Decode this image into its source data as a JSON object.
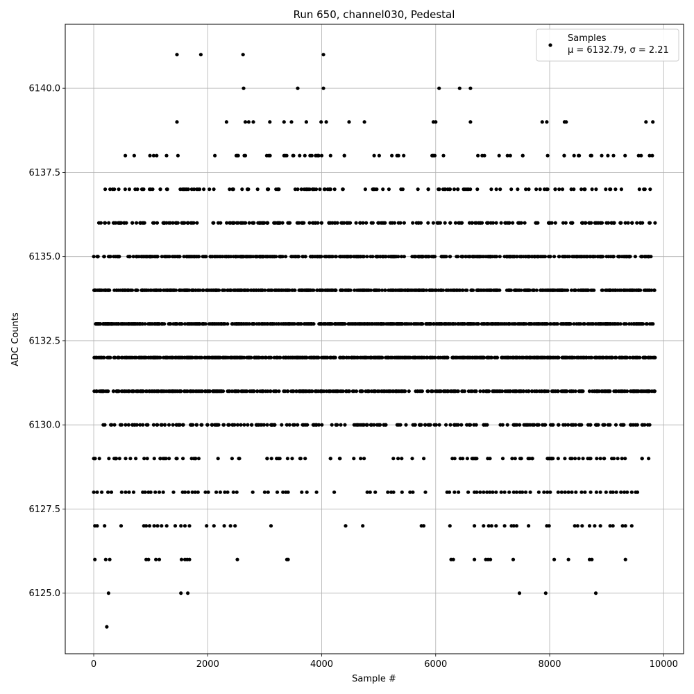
{
  "chart_data": {
    "type": "scatter",
    "title": "Run 650, channel030, Pedestal",
    "xlabel": "Sample #",
    "ylabel": "ADC Counts",
    "xlim": [
      -500,
      10350
    ],
    "ylim": [
      6123.2,
      6141.9
    ],
    "xticks": [
      0,
      2000,
      4000,
      6000,
      8000,
      10000
    ],
    "xtick_labels": [
      "0",
      "2000",
      "4000",
      "6000",
      "8000",
      "10000"
    ],
    "yticks": [
      6125.0,
      6127.5,
      6130.0,
      6132.5,
      6135.0,
      6137.5,
      6140.0
    ],
    "ytick_labels": [
      "6125.0",
      "6127.5",
      "6130.0",
      "6132.5",
      "6135.0",
      "6137.5",
      "6140.0"
    ],
    "grid": true,
    "legend_placement": "top-right",
    "marker_color": "#000000",
    "series": [
      {
        "name": "Samples",
        "stats_label": "μ = 6132.79, σ = 2.21",
        "mean": 6132.79,
        "sigma": 2.21,
        "points": [
          [
            230,
            6124
          ],
          [
            260,
            6125
          ],
          [
            1530,
            6125
          ],
          [
            1650,
            6125
          ],
          [
            7470,
            6125
          ],
          [
            7930,
            6125
          ],
          [
            8810,
            6125
          ],
          [
            20,
            6126
          ],
          [
            210,
            6126
          ],
          [
            280,
            6126
          ],
          [
            920,
            6126
          ],
          [
            960,
            6126
          ],
          [
            1090,
            6126
          ],
          [
            1150,
            6126
          ],
          [
            1540,
            6126
          ],
          [
            1600,
            6126
          ],
          [
            1640,
            6126
          ],
          [
            1680,
            6126
          ],
          [
            2520,
            6126
          ],
          [
            3390,
            6126
          ],
          [
            3410,
            6126
          ],
          [
            6270,
            6126
          ],
          [
            6310,
            6126
          ],
          [
            6680,
            6126
          ],
          [
            6880,
            6126
          ],
          [
            6920,
            6126
          ],
          [
            6960,
            6126
          ],
          [
            7360,
            6126
          ],
          [
            8080,
            6126
          ],
          [
            8330,
            6126
          ],
          [
            8700,
            6126
          ],
          [
            8740,
            6126
          ],
          [
            9330,
            6126
          ],
          [
            20,
            6127
          ],
          [
            60,
            6127
          ],
          [
            190,
            6127
          ],
          [
            480,
            6127
          ],
          [
            880,
            6127
          ],
          [
            920,
            6127
          ],
          [
            980,
            6127
          ],
          [
            1060,
            6127
          ],
          [
            1120,
            6127
          ],
          [
            1190,
            6127
          ],
          [
            1280,
            6127
          ],
          [
            1430,
            6127
          ],
          [
            1530,
            6127
          ],
          [
            1600,
            6127
          ],
          [
            1680,
            6127
          ],
          [
            1980,
            6127
          ],
          [
            2110,
            6127
          ],
          [
            2290,
            6127
          ],
          [
            2400,
            6127
          ],
          [
            2480,
            6127
          ],
          [
            3110,
            6127
          ],
          [
            4420,
            6127
          ],
          [
            4720,
            6127
          ],
          [
            5750,
            6127
          ],
          [
            5790,
            6127
          ],
          [
            6250,
            6127
          ],
          [
            6680,
            6127
          ],
          [
            6840,
            6127
          ],
          [
            6930,
            6127
          ],
          [
            6980,
            6127
          ],
          [
            7060,
            6127
          ],
          [
            7210,
            6127
          ],
          [
            7330,
            6127
          ],
          [
            7370,
            6127
          ],
          [
            7420,
            6127
          ],
          [
            7630,
            6127
          ],
          [
            7950,
            6127
          ],
          [
            7990,
            6127
          ],
          [
            8440,
            6127
          ],
          [
            8490,
            6127
          ],
          [
            8570,
            6127
          ],
          [
            8700,
            6127
          ],
          [
            8790,
            6127
          ],
          [
            8890,
            6127
          ],
          [
            9060,
            6127
          ],
          [
            9110,
            6127
          ],
          [
            9280,
            6127
          ],
          [
            9330,
            6127
          ],
          [
            9440,
            6127
          ],
          [
            0,
            6128
          ],
          [
            60,
            6128
          ],
          [
            140,
            6128
          ],
          [
            250,
            6128
          ],
          [
            310,
            6128
          ],
          [
            490,
            6128
          ],
          [
            560,
            6128
          ],
          [
            620,
            6128
          ],
          [
            700,
            6128
          ],
          [
            860,
            6128
          ],
          [
            900,
            6128
          ],
          [
            960,
            6128
          ],
          [
            1000,
            6128
          ],
          [
            1080,
            6128
          ],
          [
            1150,
            6128
          ],
          [
            1220,
            6128
          ],
          [
            1400,
            6128
          ],
          [
            1560,
            6128
          ],
          [
            1600,
            6128
          ],
          [
            1660,
            6128
          ],
          [
            1730,
            6128
          ],
          [
            1780,
            6128
          ],
          [
            1830,
            6128
          ],
          [
            1960,
            6128
          ],
          [
            2010,
            6128
          ],
          [
            2150,
            6128
          ],
          [
            2220,
            6128
          ],
          [
            2300,
            6128
          ],
          [
            2350,
            6128
          ],
          [
            2450,
            6128
          ],
          [
            2510,
            6128
          ],
          [
            2790,
            6128
          ],
          [
            3000,
            6128
          ],
          [
            3060,
            6128
          ],
          [
            3220,
            6128
          ],
          [
            3320,
            6128
          ],
          [
            3370,
            6128
          ],
          [
            3410,
            6128
          ],
          [
            3650,
            6128
          ],
          [
            3740,
            6128
          ],
          [
            3910,
            6128
          ],
          [
            4220,
            6128
          ],
          [
            4800,
            6128
          ],
          [
            4850,
            6128
          ],
          [
            4940,
            6128
          ],
          [
            5160,
            6128
          ],
          [
            5220,
            6128
          ],
          [
            5260,
            6128
          ],
          [
            5410,
            6128
          ],
          [
            5550,
            6128
          ],
          [
            5600,
            6128
          ],
          [
            5820,
            6128
          ],
          [
            6200,
            6128
          ],
          [
            6240,
            6128
          ],
          [
            6330,
            6128
          ],
          [
            6400,
            6128
          ],
          [
            6570,
            6128
          ],
          [
            6680,
            6128
          ],
          [
            6720,
            6128
          ],
          [
            6780,
            6128
          ],
          [
            6840,
            6128
          ],
          [
            6900,
            6128
          ],
          [
            6950,
            6128
          ],
          [
            7000,
            6128
          ],
          [
            7060,
            6128
          ],
          [
            7150,
            6128
          ],
          [
            7210,
            6128
          ],
          [
            7290,
            6128
          ],
          [
            7370,
            6128
          ],
          [
            7420,
            6128
          ],
          [
            7480,
            6128
          ],
          [
            7520,
            6128
          ],
          [
            7580,
            6128
          ],
          [
            7660,
            6128
          ],
          [
            7810,
            6128
          ],
          [
            7900,
            6128
          ],
          [
            7960,
            6128
          ],
          [
            8010,
            6128
          ],
          [
            8150,
            6128
          ],
          [
            8210,
            6128
          ],
          [
            8270,
            6128
          ],
          [
            8330,
            6128
          ],
          [
            8390,
            6128
          ],
          [
            8460,
            6128
          ],
          [
            8560,
            6128
          ],
          [
            8620,
            6128
          ],
          [
            8720,
            6128
          ],
          [
            8820,
            6128
          ],
          [
            8890,
            6128
          ],
          [
            8990,
            6128
          ],
          [
            9070,
            6128
          ],
          [
            9110,
            6128
          ],
          [
            9170,
            6128
          ],
          [
            9250,
            6128
          ],
          [
            9310,
            6128
          ],
          [
            9360,
            6128
          ],
          [
            9440,
            6128
          ],
          [
            9510,
            6128
          ],
          [
            9540,
            6128
          ],
          [
            1460,
            6139
          ],
          [
            2330,
            6139
          ],
          [
            2660,
            6139
          ],
          [
            2720,
            6139
          ],
          [
            2800,
            6139
          ],
          [
            3090,
            6139
          ],
          [
            3340,
            6139
          ],
          [
            3470,
            6139
          ],
          [
            3730,
            6139
          ],
          [
            3990,
            6139
          ],
          [
            4080,
            6139
          ],
          [
            4480,
            6139
          ],
          [
            4750,
            6139
          ],
          [
            5960,
            6139
          ],
          [
            6000,
            6139
          ],
          [
            6610,
            6139
          ],
          [
            7870,
            6139
          ],
          [
            7950,
            6139
          ],
          [
            8260,
            6139
          ],
          [
            8290,
            6139
          ],
          [
            9690,
            6139
          ],
          [
            9810,
            6139
          ],
          [
            2630,
            6140
          ],
          [
            3580,
            6140
          ],
          [
            4030,
            6140
          ],
          [
            6060,
            6140
          ],
          [
            6420,
            6140
          ],
          [
            6610,
            6140
          ],
          [
            1460,
            6141
          ],
          [
            1880,
            6141
          ],
          [
            2620,
            6141
          ],
          [
            4030,
            6141
          ]
        ],
        "bands": [
          {
            "value": 6129,
            "segments": [
              [
                0,
                1900
              ],
              [
                2000,
                2600
              ],
              [
                3000,
                3800
              ],
              [
                4100,
                4800
              ],
              [
                5000,
                5800
              ],
              [
                6250,
                9800
              ]
            ],
            "density": 0.012
          },
          {
            "value": 6130,
            "segments": [
              [
                0,
                9850
              ]
            ],
            "density": 0.025
          },
          {
            "value": 6131,
            "segments": [
              [
                0,
                9850
              ]
            ],
            "density": 0.05
          },
          {
            "value": 6132,
            "segments": [
              [
                0,
                9850
              ]
            ],
            "density": 0.07
          },
          {
            "value": 6133,
            "segments": [
              [
                0,
                9850
              ]
            ],
            "density": 0.07
          },
          {
            "value": 6134,
            "segments": [
              [
                0,
                9850
              ]
            ],
            "density": 0.06
          },
          {
            "value": 6135,
            "segments": [
              [
                0,
                9850
              ]
            ],
            "density": 0.045
          },
          {
            "value": 6136,
            "segments": [
              [
                0,
                9850
              ]
            ],
            "density": 0.025
          },
          {
            "value": 6137,
            "segments": [
              [
                100,
                9850
              ]
            ],
            "density": 0.014
          },
          {
            "value": 6138,
            "segments": [
              [
                250,
                9850
              ]
            ],
            "density": 0.006
          }
        ]
      }
    ]
  }
}
